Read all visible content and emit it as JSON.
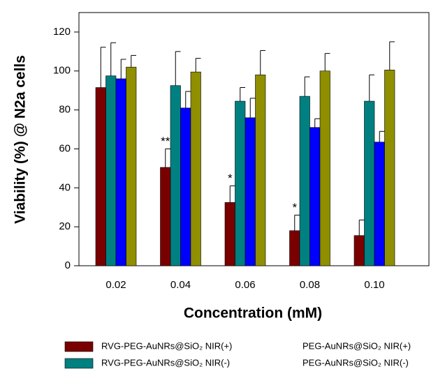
{
  "chart_data": {
    "type": "bar",
    "categories": [
      "0.02",
      "0.04",
      "0.06",
      "0.08",
      "0.10"
    ],
    "series": [
      {
        "name": "RVG-PEG-AuNRs@SiO₂ NIR(+)",
        "color": "#7a0000",
        "values": [
          91.5,
          50.5,
          32.5,
          18,
          15.5
        ],
        "errors": [
          20.7,
          9.5,
          8.5,
          8,
          8
        ],
        "annotations": [
          null,
          "**",
          "*",
          "*",
          null
        ]
      },
      {
        "name": "RVG-PEG-AuNRs@SiO₂ NIR(-)",
        "color": "#008080",
        "values": [
          97.5,
          92.5,
          84.5,
          87,
          84.5
        ],
        "errors": [
          17,
          17.5,
          7,
          10,
          13.5
        ]
      },
      {
        "name": "PEG-AuNRs@SiO₂ NIR(+)",
        "color": "#0000ff",
        "values": [
          96,
          81,
          76,
          71,
          63.5
        ],
        "errors": [
          10,
          8.5,
          10,
          4.5,
          5.5
        ]
      },
      {
        "name": "PEG-AuNRs@SiO₂ NIR(-)",
        "color": "#8f8f00",
        "values": [
          102,
          99.5,
          98,
          100,
          100.5
        ],
        "errors": [
          6,
          7,
          12.5,
          9,
          14.5
        ]
      }
    ],
    "xlabel": "Concentration (mM)",
    "ylabel": "Viability (%) @ N2a cells",
    "ylim": [
      0,
      130
    ],
    "yticks": [
      0,
      20,
      40,
      60,
      80,
      100,
      120
    ]
  }
}
